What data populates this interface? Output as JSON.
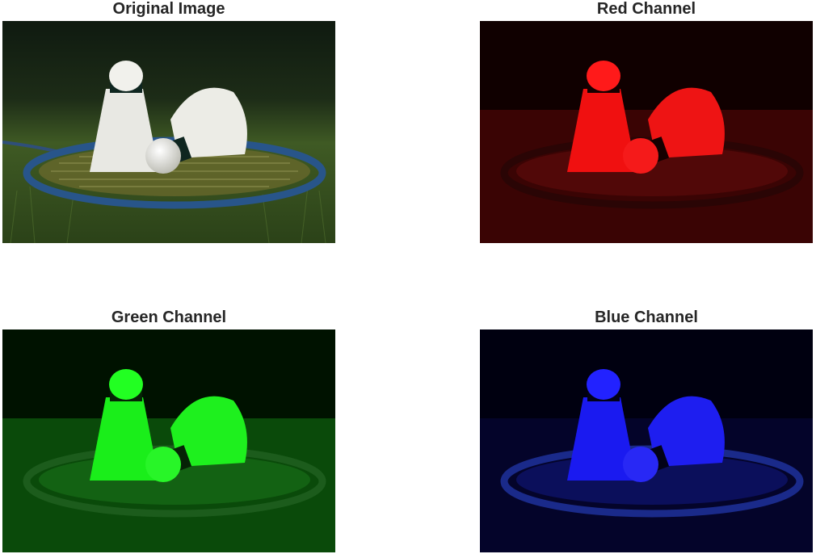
{
  "panels": [
    {
      "title": "Original Image",
      "channel": "rgb"
    },
    {
      "title": "Red Channel",
      "channel": "red"
    },
    {
      "title": "Green Channel",
      "channel": "green"
    },
    {
      "title": "Blue Channel",
      "channel": "blue"
    }
  ],
  "colors": {
    "title_text": "#262626",
    "background": "#ffffff"
  }
}
